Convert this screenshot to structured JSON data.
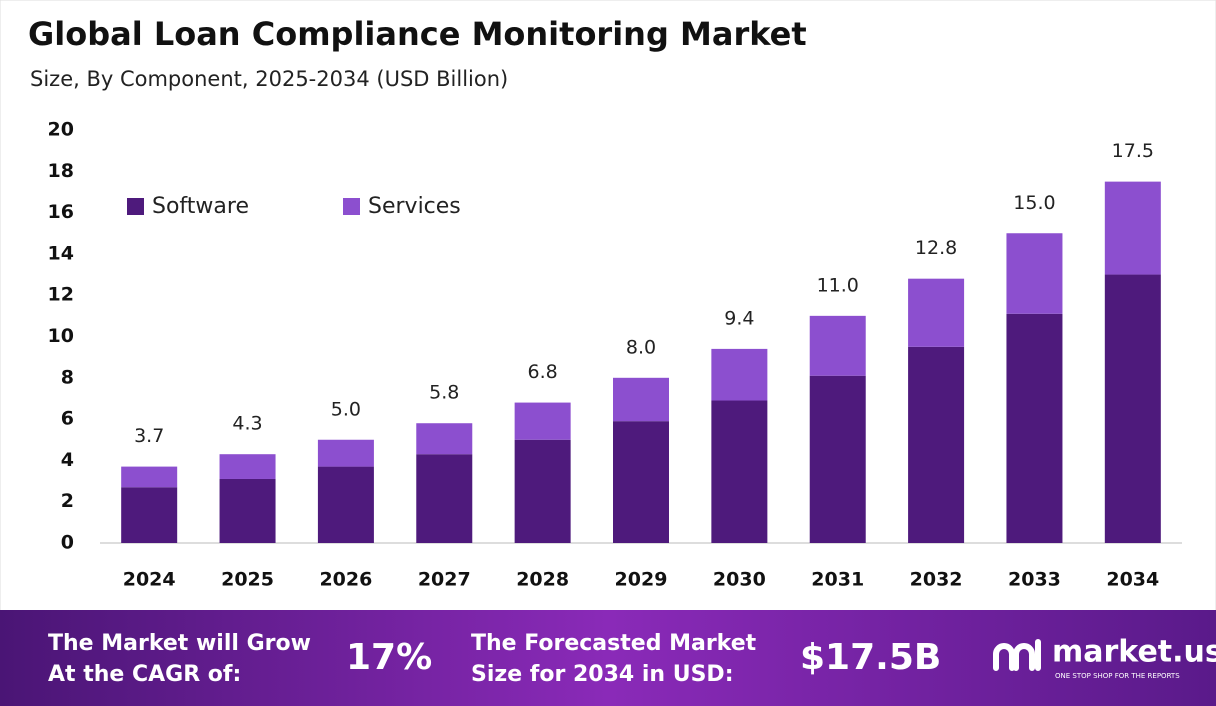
{
  "chart_data": {
    "type": "stacked_bar",
    "title": "Global Loan Compliance Monitoring Market",
    "subtitle": "Size, By Component, 2025-2034 (USD Billion)",
    "categories": [
      "2024",
      "2025",
      "2026",
      "2027",
      "2028",
      "2029",
      "2030",
      "2031",
      "2032",
      "2033",
      "2034"
    ],
    "series": [
      {
        "name": "Software",
        "color": "#4e1a7c",
        "values": [
          2.7,
          3.1,
          3.7,
          4.3,
          5.0,
          5.9,
          6.9,
          8.1,
          9.5,
          11.1,
          13.0
        ]
      },
      {
        "name": "Services",
        "color": "#8c4fcf",
        "values": [
          1.0,
          1.2,
          1.3,
          1.5,
          1.8,
          2.1,
          2.5,
          2.9,
          3.3,
          3.9,
          4.5
        ]
      }
    ],
    "totals": {
      "values": [
        3.7,
        4.3,
        5,
        5.8,
        6.8,
        8,
        9.4,
        11,
        12.8,
        15,
        17.5
      ],
      "value_labels": [
        "3.7",
        "4.3",
        "5.0",
        "5.8",
        "6.8",
        "8.0",
        "9.4",
        "11.0",
        "12.8",
        "15.0",
        "17.5"
      ]
    },
    "ylim": [
      0,
      20
    ],
    "yticks": [
      0,
      2,
      4,
      6,
      8,
      10,
      12,
      14,
      16,
      18,
      20
    ],
    "grid": false,
    "legend": "top-left"
  },
  "banner": {
    "cagr_label": [
      "The Market will Grow",
      "At the CAGR of:"
    ],
    "cagr_value": "17%",
    "forecast_label": [
      "The Forecasted Market",
      "Size for 2034 in USD:"
    ],
    "forecast_value": "$17.5B",
    "logo": "market.us",
    "tagline": "ONE STOP SHOP FOR THE REPORTS"
  }
}
